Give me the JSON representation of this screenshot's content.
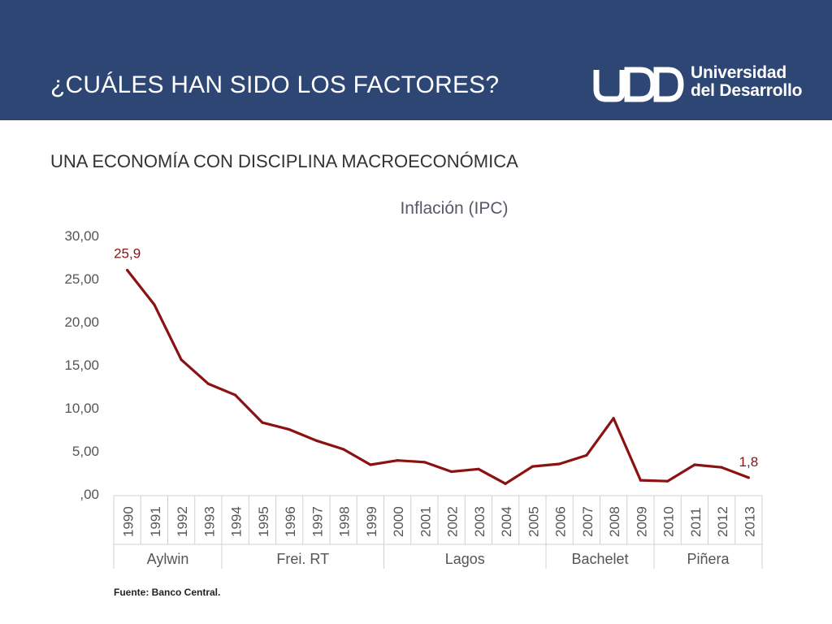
{
  "header": {
    "title": "¿CUÁLES HAN SIDO LOS FACTORES?",
    "bg_color": "#2e4674"
  },
  "logo": {
    "line1": "Universidad",
    "line2": "del Desarrollo",
    "monogram": "UDD"
  },
  "subtitle": "UNA ECONOMÍA CON DISCIPLINA MACROECONÓMICA",
  "source": "Fuente: Banco Central.",
  "chart_data": {
    "type": "line",
    "title": "Inflación (IPC)",
    "x": [
      "1990",
      "1991",
      "1992",
      "1993",
      "1994",
      "1995",
      "1996",
      "1997",
      "1998",
      "1999",
      "2000",
      "2001",
      "2002",
      "2003",
      "2004",
      "2005",
      "2006",
      "2007",
      "2008",
      "2009",
      "2010",
      "2011",
      "2012",
      "2013"
    ],
    "series": [
      {
        "values": [
          25.9,
          21.9,
          15.5,
          12.7,
          11.4,
          8.2,
          7.4,
          6.1,
          5.1,
          3.3,
          3.8,
          3.6,
          2.5,
          2.8,
          1.1,
          3.1,
          3.4,
          4.4,
          8.7,
          1.5,
          1.4,
          3.3,
          3.0,
          1.8
        ],
        "color": "#8b1212"
      }
    ],
    "yticks": [
      "30,00",
      "25,00",
      "20,00",
      "15,00",
      "10,00",
      "5,00",
      ",00"
    ],
    "ylim": [
      0,
      30
    ],
    "groups": [
      {
        "label": "Aylwin",
        "count": 4
      },
      {
        "label": "Frei. RT",
        "count": 6
      },
      {
        "label": "Lagos",
        "count": 6
      },
      {
        "label": "Bachelet",
        "count": 4
      },
      {
        "label": "Piñera",
        "count": 4
      }
    ],
    "annotations": [
      {
        "text": "25,9",
        "index": 0
      },
      {
        "text": "1,8",
        "index": 23
      }
    ],
    "grid": false
  }
}
